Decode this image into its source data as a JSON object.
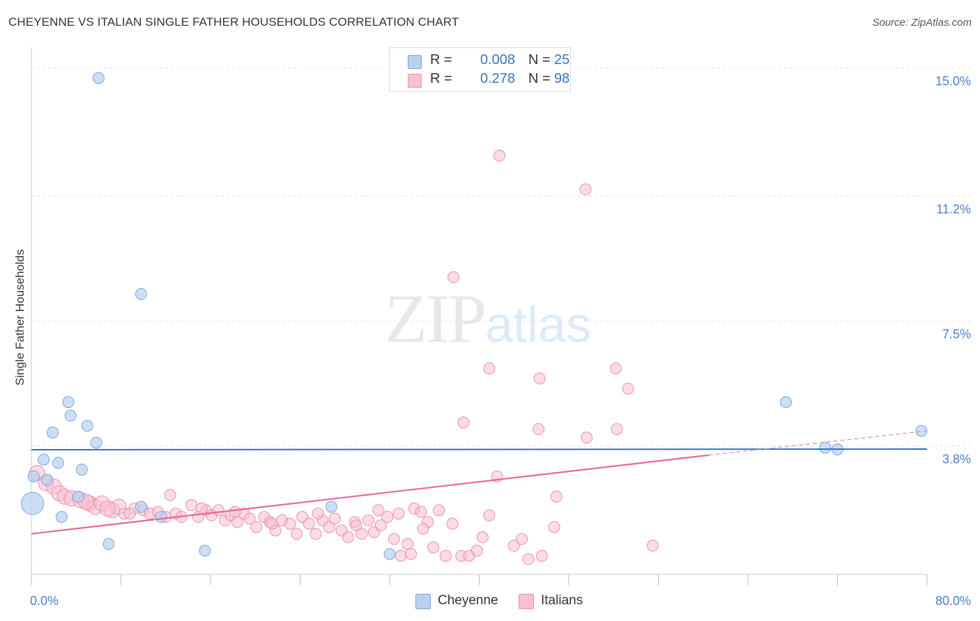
{
  "header": {
    "title": "CHEYENNE VS ITALIAN SINGLE FATHER HOUSEHOLDS CORRELATION CHART",
    "source": "Source: ZipAtlas.com"
  },
  "watermark": {
    "zip": "ZIP",
    "atlas": "atlas"
  },
  "legend": {
    "rows": [
      {
        "r_label": "R =",
        "r_value": "0.008",
        "n_label": "N =",
        "n_value": "25",
        "color": "#b8d0f0"
      },
      {
        "r_label": "R =",
        "r_value": "0.278",
        "n_label": "N =",
        "n_value": "98",
        "color": "#f8c0d0"
      }
    ]
  },
  "bottom_legend": {
    "items": [
      {
        "label": "Cheyenne",
        "color": "#b8d0f0"
      },
      {
        "label": "Italians",
        "color": "#f8c0d0"
      }
    ]
  },
  "chart_data": {
    "type": "scatter",
    "title": "CHEYENNE VS ITALIAN SINGLE FATHER HOUSEHOLDS CORRELATION CHART",
    "xlabel": "",
    "ylabel": "Single Father Households",
    "xlim": [
      0,
      80
    ],
    "ylim": [
      0,
      15.4
    ],
    "x_tick_labels": [
      "0.0%",
      "80.0%"
    ],
    "y_ticks": [
      3.8,
      7.5,
      11.2,
      15.0
    ],
    "y_tick_labels": [
      "3.8%",
      "7.5%",
      "11.2%",
      "15.0%"
    ],
    "grid": true,
    "legend_position": "top-center",
    "colors": {
      "cheyenne": "#4a86d8",
      "cheyenne_fill": "#b8d0f0",
      "italians": "#e86890",
      "italians_fill": "#f8c0d0",
      "tick": "#4a7fd0"
    },
    "series": [
      {
        "name": "Cheyenne",
        "points": [
          [
            6.0,
            14.7
          ],
          [
            9.8,
            8.3
          ],
          [
            3.3,
            5.1
          ],
          [
            3.5,
            4.7
          ],
          [
            5.0,
            4.4
          ],
          [
            1.9,
            4.2
          ],
          [
            5.8,
            3.9
          ],
          [
            1.1,
            3.4
          ],
          [
            2.4,
            3.3
          ],
          [
            4.5,
            3.1
          ],
          [
            0.2,
            2.9
          ],
          [
            1.4,
            2.8
          ],
          [
            4.2,
            2.3
          ],
          [
            0.1,
            2.1
          ],
          [
            9.8,
            2.0
          ],
          [
            11.6,
            1.7
          ],
          [
            2.7,
            1.7
          ],
          [
            6.9,
            0.9
          ],
          [
            15.5,
            0.7
          ],
          [
            26.8,
            2.0
          ],
          [
            32.0,
            0.6
          ],
          [
            67.4,
            5.1
          ],
          [
            70.9,
            3.75
          ],
          [
            72.0,
            3.7
          ],
          [
            79.5,
            4.25
          ]
        ]
      },
      {
        "name": "Italians",
        "points": [
          [
            41.8,
            12.4
          ],
          [
            49.5,
            11.4
          ],
          [
            37.7,
            8.8
          ],
          [
            40.9,
            6.1
          ],
          [
            45.4,
            5.8
          ],
          [
            52.2,
            6.1
          ],
          [
            53.3,
            5.5
          ],
          [
            38.6,
            4.5
          ],
          [
            45.3,
            4.3
          ],
          [
            52.3,
            4.3
          ],
          [
            49.6,
            4.05
          ],
          [
            41.6,
            2.9
          ],
          [
            46.9,
            2.3
          ],
          [
            0.5,
            3.0
          ],
          [
            1.3,
            2.7
          ],
          [
            2.0,
            2.6
          ],
          [
            2.5,
            2.4
          ],
          [
            3.0,
            2.3
          ],
          [
            3.6,
            2.25
          ],
          [
            4.4,
            2.2
          ],
          [
            5.2,
            2.1
          ],
          [
            5.7,
            2.0
          ],
          [
            6.3,
            2.1
          ],
          [
            7.2,
            1.9
          ],
          [
            7.8,
            2.0
          ],
          [
            8.3,
            1.8
          ],
          [
            9.2,
            1.95
          ],
          [
            10.0,
            1.9
          ],
          [
            10.6,
            1.8
          ],
          [
            11.3,
            1.85
          ],
          [
            12.0,
            1.7
          ],
          [
            12.9,
            1.8
          ],
          [
            13.4,
            1.7
          ],
          [
            14.3,
            2.05
          ],
          [
            14.9,
            1.7
          ],
          [
            15.6,
            1.9
          ],
          [
            16.1,
            1.75
          ],
          [
            16.7,
            1.9
          ],
          [
            17.3,
            1.6
          ],
          [
            17.8,
            1.75
          ],
          [
            18.4,
            1.55
          ],
          [
            19.0,
            1.8
          ],
          [
            19.5,
            1.65
          ],
          [
            20.1,
            1.4
          ],
          [
            20.8,
            1.7
          ],
          [
            21.3,
            1.55
          ],
          [
            21.8,
            1.3
          ],
          [
            22.4,
            1.6
          ],
          [
            23.1,
            1.5
          ],
          [
            23.7,
            1.2
          ],
          [
            24.2,
            1.7
          ],
          [
            24.8,
            1.5
          ],
          [
            25.4,
            1.2
          ],
          [
            26.0,
            1.6
          ],
          [
            26.6,
            1.4
          ],
          [
            27.1,
            1.65
          ],
          [
            27.7,
            1.3
          ],
          [
            28.3,
            1.1
          ],
          [
            28.9,
            1.55
          ],
          [
            29.5,
            1.2
          ],
          [
            30.1,
            1.6
          ],
          [
            30.6,
            1.25
          ],
          [
            31.2,
            1.45
          ],
          [
            31.8,
            1.7
          ],
          [
            32.4,
            1.05
          ],
          [
            33.0,
            0.55
          ],
          [
            33.6,
            0.9
          ],
          [
            34.2,
            1.95
          ],
          [
            34.8,
            1.85
          ],
          [
            35.4,
            1.55
          ],
          [
            35.9,
            0.8
          ],
          [
            36.4,
            1.9
          ],
          [
            37.0,
            0.55
          ],
          [
            37.6,
            1.5
          ],
          [
            38.4,
            0.55
          ],
          [
            39.1,
            0.55
          ],
          [
            39.8,
            0.7
          ],
          [
            40.3,
            1.1
          ],
          [
            40.9,
            1.75
          ],
          [
            43.1,
            0.85
          ],
          [
            43.8,
            1.05
          ],
          [
            44.4,
            0.45
          ],
          [
            45.6,
            0.55
          ],
          [
            46.7,
            1.4
          ],
          [
            55.5,
            0.85
          ],
          [
            35.0,
            1.35
          ],
          [
            33.9,
            0.6
          ],
          [
            8.8,
            1.8
          ],
          [
            12.4,
            2.35
          ],
          [
            15.2,
            1.95
          ],
          [
            18.2,
            1.85
          ],
          [
            21.5,
            1.5
          ],
          [
            25.6,
            1.8
          ],
          [
            29.0,
            1.45
          ],
          [
            31.0,
            1.9
          ],
          [
            32.8,
            1.8
          ],
          [
            4.9,
            2.15
          ],
          [
            6.8,
            1.95
          ]
        ]
      }
    ],
    "trendlines": [
      {
        "series": "Cheyenne",
        "x": [
          0,
          80
        ],
        "y": [
          3.69,
          3.71
        ]
      },
      {
        "series": "Italians",
        "x": [
          0,
          60.5
        ],
        "y": [
          1.2,
          3.53
        ]
      },
      {
        "series": "Italians (extrapolated)",
        "x": [
          60.5,
          80
        ],
        "y": [
          3.53,
          4.25
        ]
      }
    ]
  }
}
